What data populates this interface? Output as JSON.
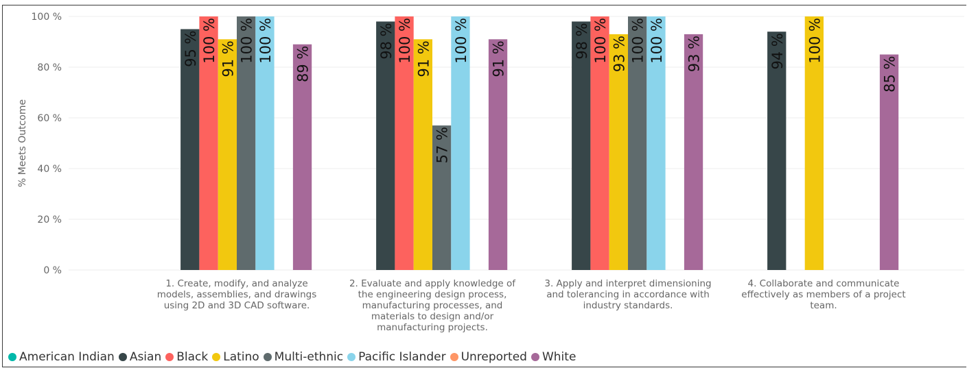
{
  "chart_data": {
    "type": "bar",
    "ylabel": "% Meets Outcome",
    "ylim": [
      0,
      100
    ],
    "yticks": [
      0,
      20,
      40,
      60,
      80,
      100
    ],
    "ytick_labels": [
      "0 %",
      "20 %",
      "40 %",
      "60 %",
      "80 %",
      "100 %"
    ],
    "grid": true,
    "legend_position": "bottom-left",
    "categories": [
      [
        "1. Create, modify, and analyze",
        "models, assemblies, and drawings",
        "using 2D and 3D CAD software."
      ],
      [
        "2. Evaluate and apply knowledge of",
        "the engineering design process,",
        "manufacturing processes, and",
        "materials to design and/or",
        "manufacturing projects."
      ],
      [
        "3. Apply and interpret dimensioning",
        "and tolerancing in accordance with",
        "industry standards."
      ],
      [
        "4. Collaborate and communicate",
        "effectively as members of a project",
        "team."
      ]
    ],
    "series": [
      {
        "name": "American Indian",
        "color": "#01B8AA",
        "values": [
          null,
          null,
          null,
          null
        ],
        "labels": [
          "",
          "",
          "",
          ""
        ]
      },
      {
        "name": "Asian",
        "color": "#374649",
        "values": [
          95,
          98,
          98,
          94
        ],
        "labels": [
          "95 %",
          "98 %",
          "98 %",
          "94 %"
        ]
      },
      {
        "name": "Black",
        "color": "#FD625E",
        "values": [
          100,
          100,
          100,
          null
        ],
        "labels": [
          "100 %",
          "100 %",
          "100 %",
          ""
        ]
      },
      {
        "name": "Latino",
        "color": "#F2C80F",
        "values": [
          91,
          91,
          93,
          100
        ],
        "labels": [
          "91 %",
          "91 %",
          "93 %",
          "100 %"
        ]
      },
      {
        "name": "Multi-ethnic",
        "color": "#5F6B6D",
        "values": [
          100,
          57,
          100,
          null
        ],
        "labels": [
          "100 %",
          "57 %",
          "100 %",
          ""
        ]
      },
      {
        "name": "Pacific Islander",
        "color": "#8AD4EB",
        "values": [
          100,
          100,
          100,
          null
        ],
        "labels": [
          "100 %",
          "100 %",
          "100 %",
          ""
        ]
      },
      {
        "name": "Unreported",
        "color": "#FE9666",
        "values": [
          null,
          null,
          null,
          null
        ],
        "labels": [
          "",
          "",
          "",
          ""
        ]
      },
      {
        "name": "White",
        "color": "#A66999",
        "values": [
          89,
          91,
          93,
          85
        ],
        "labels": [
          "89 %",
          "91 %",
          "93 %",
          "85 %"
        ]
      }
    ]
  }
}
